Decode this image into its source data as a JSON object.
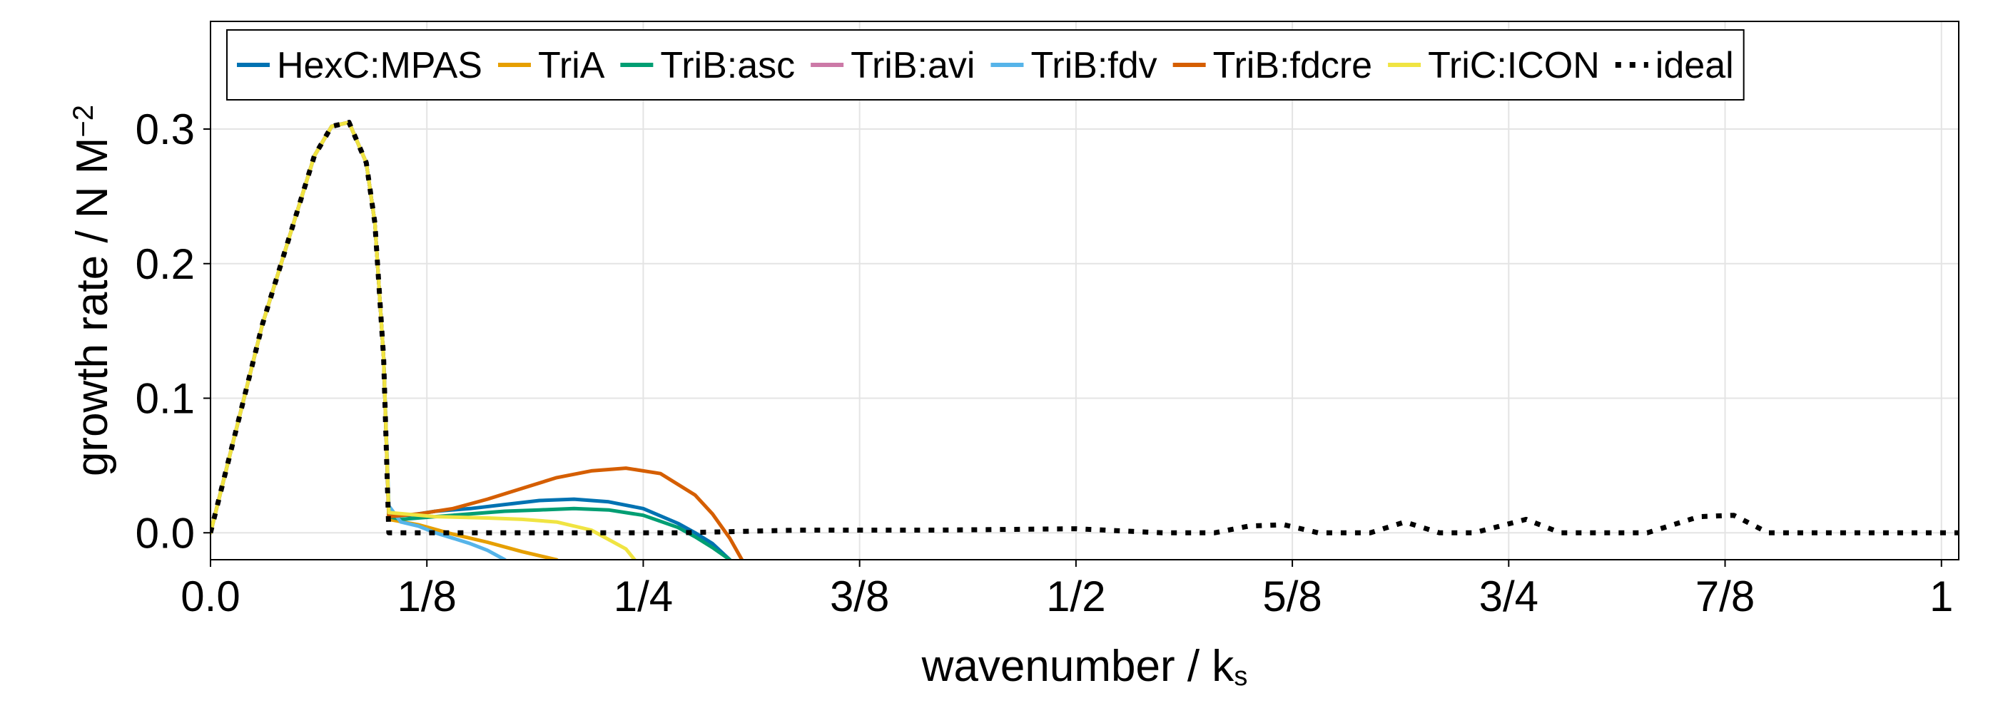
{
  "chart_data": {
    "type": "line",
    "title": "",
    "xlabel": "wavenumber / k",
    "xlabel_sub": "s",
    "ylabel": "growth rate / N M",
    "ylabel_sup": "−2",
    "xlim": [
      0,
      1.01
    ],
    "ylim": [
      -0.02,
      0.38
    ],
    "grid": true,
    "legend": "top",
    "x_ticks": [
      {
        "value": 0,
        "label": "0.0"
      },
      {
        "value": 0.125,
        "label": "1/8"
      },
      {
        "value": 0.25,
        "label": "1/4"
      },
      {
        "value": 0.375,
        "label": "3/8"
      },
      {
        "value": 0.5,
        "label": "1/2"
      },
      {
        "value": 0.625,
        "label": "5/8"
      },
      {
        "value": 0.75,
        "label": "3/4"
      },
      {
        "value": 0.875,
        "label": "7/8"
      },
      {
        "value": 1,
        "label": "1"
      }
    ],
    "y_ticks": [
      {
        "value": 0.0,
        "label": "0.0"
      },
      {
        "value": 0.1,
        "label": "0.1"
      },
      {
        "value": 0.2,
        "label": "0.2"
      },
      {
        "value": 0.3,
        "label": "0.3"
      }
    ],
    "series": [
      {
        "name": "HexC:MPAS",
        "color": "#0072b2",
        "style": "solid",
        "x": [
          0,
          0.03,
          0.06,
          0.07,
          0.08,
          0.09,
          0.095,
          0.1,
          0.103,
          0.115,
          0.13,
          0.15,
          0.17,
          0.19,
          0.21,
          0.23,
          0.25,
          0.27,
          0.28,
          0.29,
          0.3
        ],
        "y": [
          0,
          0.155,
          0.28,
          0.302,
          0.305,
          0.275,
          0.23,
          0.13,
          0.014,
          0.013,
          0.016,
          0.018,
          0.021,
          0.024,
          0.025,
          0.023,
          0.018,
          0.007,
          0.0,
          -0.008,
          -0.02
        ]
      },
      {
        "name": "TriA",
        "color": "#e69f00",
        "style": "solid",
        "x": [
          0,
          0.03,
          0.06,
          0.07,
          0.08,
          0.09,
          0.095,
          0.1,
          0.103,
          0.12,
          0.14,
          0.16,
          0.18,
          0.2
        ],
        "y": [
          0,
          0.155,
          0.28,
          0.302,
          0.305,
          0.275,
          0.23,
          0.13,
          0.01,
          0.006,
          -0.001,
          -0.007,
          -0.014,
          -0.02
        ]
      },
      {
        "name": "TriB:asc",
        "color": "#009e73",
        "style": "solid",
        "x": [
          0,
          0.03,
          0.06,
          0.07,
          0.08,
          0.09,
          0.095,
          0.1,
          0.103,
          0.11,
          0.13,
          0.15,
          0.17,
          0.19,
          0.21,
          0.23,
          0.25,
          0.27,
          0.28,
          0.29,
          0.3
        ],
        "y": [
          0,
          0.155,
          0.28,
          0.302,
          0.305,
          0.275,
          0.23,
          0.13,
          0.012,
          0.01,
          0.012,
          0.014,
          0.016,
          0.017,
          0.018,
          0.017,
          0.013,
          0.004,
          -0.003,
          -0.011,
          -0.02
        ]
      },
      {
        "name": "TriB:avi",
        "color": "#cc79a7",
        "style": "solid",
        "x": [
          0,
          0.03,
          0.06,
          0.07,
          0.08,
          0.09,
          0.095,
          0.1
        ],
        "y": [
          0,
          0.155,
          0.28,
          0.302,
          0.305,
          0.275,
          0.23,
          0.13
        ]
      },
      {
        "name": "TriB:fdv",
        "color": "#56b4e9",
        "style": "solid",
        "x": [
          0,
          0.03,
          0.06,
          0.07,
          0.08,
          0.09,
          0.095,
          0.1,
          0.103,
          0.11,
          0.12,
          0.13,
          0.14,
          0.15,
          0.16,
          0.17
        ],
        "y": [
          0,
          0.155,
          0.28,
          0.302,
          0.305,
          0.275,
          0.23,
          0.13,
          0.02,
          0.008,
          0.005,
          0.0,
          -0.004,
          -0.008,
          -0.013,
          -0.02
        ]
      },
      {
        "name": "TriB:fdcre",
        "color": "#d55e00",
        "style": "solid",
        "x": [
          0,
          0.03,
          0.06,
          0.07,
          0.08,
          0.09,
          0.095,
          0.1,
          0.103,
          0.12,
          0.14,
          0.16,
          0.18,
          0.2,
          0.22,
          0.24,
          0.26,
          0.28,
          0.29,
          0.3,
          0.307
        ],
        "y": [
          0,
          0.155,
          0.28,
          0.302,
          0.305,
          0.275,
          0.23,
          0.13,
          0.012,
          0.014,
          0.018,
          0.025,
          0.033,
          0.041,
          0.046,
          0.048,
          0.044,
          0.028,
          0.014,
          -0.004,
          -0.02
        ]
      },
      {
        "name": "TriC:ICON",
        "color": "#f0e442",
        "style": "solid",
        "x": [
          0,
          0.03,
          0.06,
          0.07,
          0.08,
          0.09,
          0.095,
          0.1,
          0.103,
          0.13,
          0.16,
          0.18,
          0.2,
          0.22,
          0.24,
          0.245
        ],
        "y": [
          0,
          0.155,
          0.28,
          0.302,
          0.305,
          0.275,
          0.23,
          0.13,
          0.015,
          0.012,
          0.011,
          0.01,
          0.008,
          0.002,
          -0.012,
          -0.02
        ]
      },
      {
        "name": "ideal",
        "color": "#000000",
        "style": "dotted",
        "x": [
          0,
          0.03,
          0.06,
          0.07,
          0.08,
          0.09,
          0.095,
          0.1,
          0.103,
          0.27,
          0.34,
          0.42,
          0.5,
          0.55,
          0.58,
          0.6,
          0.62,
          0.64,
          0.67,
          0.69,
          0.71,
          0.73,
          0.76,
          0.78,
          0.8,
          0.83,
          0.86,
          0.88,
          0.9,
          0.93,
          1.01
        ],
        "y": [
          0,
          0.155,
          0.28,
          0.302,
          0.305,
          0.275,
          0.23,
          0.13,
          0.0,
          0.0,
          0.002,
          0.002,
          0.003,
          0.0,
          0.0,
          0.005,
          0.006,
          0.0,
          0.0,
          0.008,
          0.0,
          0.0,
          0.01,
          0.0,
          0.0,
          0.0,
          0.012,
          0.013,
          0.0,
          0.0,
          0.0
        ]
      }
    ]
  }
}
